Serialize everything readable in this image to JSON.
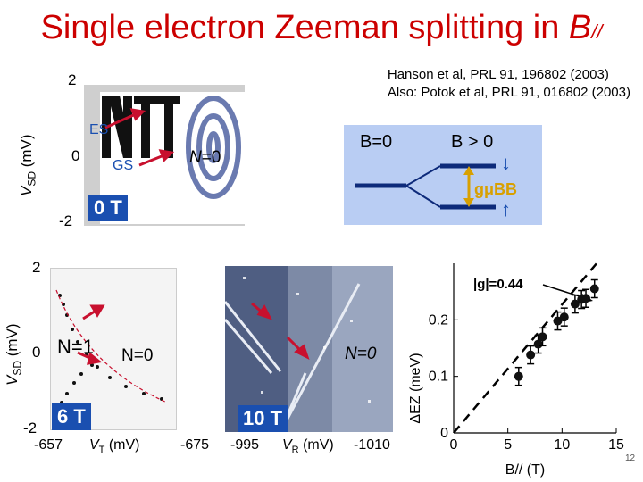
{
  "title": {
    "main": "Single electron Zeeman splitting in ",
    "b": "B",
    "sub": "//"
  },
  "reference": {
    "line1": "Hanson et al, PRL 91, 196802 (2003)",
    "line2": "Also: Potok et al, PRL 91, 016802 (2003)"
  },
  "top_panel": {
    "ylabel_main": "V",
    "ylabel_sub": "SD",
    "ylabel_unit": " (mV)",
    "ticks": [
      "2",
      "0",
      "-2"
    ],
    "es_label": "ES",
    "gs_label": "GS",
    "n_label": "N",
    "n_value": "=0",
    "field_tag": "0 T"
  },
  "zeeman_panel": {
    "b0_label": "B=0",
    "bpos_label": "B > 0",
    "split_label": "gμBB",
    "up_arrow": "↑",
    "down_arrow": "↓"
  },
  "left_panel": {
    "ylabel_main": "V",
    "ylabel_sub": "SD",
    "ylabel_unit": " (mV)",
    "ticks": [
      "2",
      "0",
      "-2"
    ],
    "n1_label": "N=1",
    "n0_label": "N=0",
    "field_tag": "6 T",
    "x_min": "-657",
    "x_max": "-675",
    "xlabel_main": "V",
    "xlabel_sub": "T",
    "xlabel_unit": " (mV)"
  },
  "middle_panel": {
    "n0_label": "N=0",
    "field_tag": "10 T",
    "x_min": "-995",
    "x_max": "-1010",
    "xlabel_main": "V",
    "xlabel_sub": "R",
    "xlabel_unit": " (mV)"
  },
  "chart_data": {
    "type": "scatter",
    "xlabel": "B// (T)",
    "ylabel": "ΔEZ (meV)",
    "xlim": [
      0,
      15
    ],
    "ylim": [
      0,
      0.3
    ],
    "x_ticks": [
      "0",
      "5",
      "10",
      "15"
    ],
    "y_ticks": [
      "0",
      "0.1",
      "0.2"
    ],
    "annotation": "|g|=0.44",
    "points": [
      {
        "x": 6,
        "y": 0.1
      },
      {
        "x": 7.1,
        "y": 0.138
      },
      {
        "x": 7.8,
        "y": 0.157
      },
      {
        "x": 8.2,
        "y": 0.17
      },
      {
        "x": 9.6,
        "y": 0.198
      },
      {
        "x": 10.2,
        "y": 0.205
      },
      {
        "x": 11.2,
        "y": 0.228
      },
      {
        "x": 11.8,
        "y": 0.236
      },
      {
        "x": 12.2,
        "y": 0.238
      },
      {
        "x": 13.0,
        "y": 0.255
      }
    ],
    "fit_line": {
      "x": [
        0,
        13.2
      ],
      "y": [
        0,
        0.34
      ]
    }
  },
  "page_number": "12"
}
